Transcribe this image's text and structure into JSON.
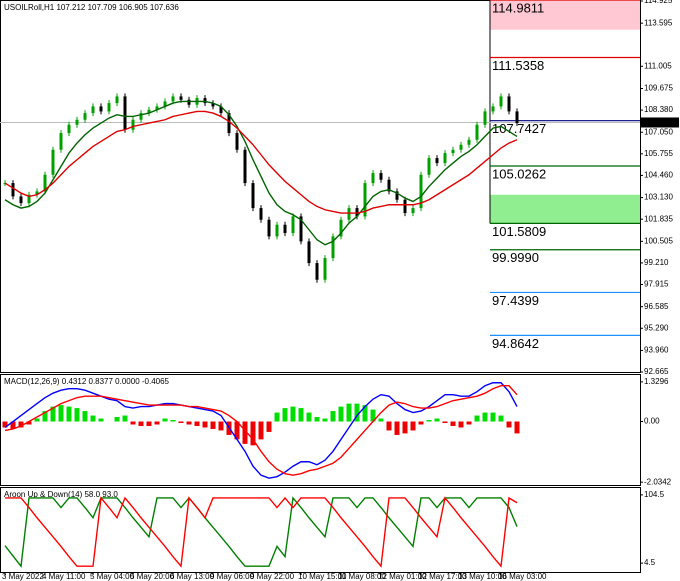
{
  "chart_data": [
    {
      "type": "candlestick",
      "title": "USOILRoll,H1 107.212 107.709 106.905 107.636",
      "categories": [
        "3 May 2022",
        null,
        null,
        null,
        null,
        "4 May 11:00",
        null,
        null,
        null,
        null,
        null,
        "5 May 04:00",
        null,
        null,
        null,
        null,
        "5 May 20:00",
        null,
        null,
        null,
        null,
        "6 May 13:00",
        null,
        null,
        null,
        null,
        "9 May 06:00",
        null,
        null,
        null,
        null,
        "9 May 22:00",
        null,
        null,
        null,
        null,
        null,
        "10 May 15:00",
        null,
        null,
        null,
        null,
        "11 May 08:00",
        null,
        null,
        null,
        null,
        "12 May 01:00",
        null,
        null,
        null,
        null,
        "12 May 17:00",
        null,
        null,
        null,
        null,
        "13 May 10:00",
        null,
        null,
        null,
        null,
        "16 May 03:00",
        null,
        null
      ],
      "values": [
        104.0,
        103.2,
        102.8,
        103.3,
        103.5,
        104.5,
        106.0,
        107.0,
        107.5,
        107.8,
        108.2,
        108.6,
        108.3,
        108.8,
        109.2,
        107.2,
        107.8,
        108.2,
        108.4,
        108.6,
        108.9,
        109.2,
        109.0,
        108.7,
        109.1,
        108.8,
        108.6,
        108.2,
        107.0,
        106.0,
        104.0,
        102.5,
        101.8,
        100.8,
        101.5,
        101.0,
        102.0,
        100.5,
        99.2,
        98.2,
        99.5,
        100.8,
        101.8,
        102.5,
        102.0,
        104.0,
        104.6,
        104.2,
        103.5,
        103.0,
        102.2,
        102.5,
        104.5,
        105.5,
        105.2,
        105.8,
        106.0,
        106.3,
        106.6,
        107.5,
        108.3,
        108.6,
        109.2,
        108.3,
        107.6
      ],
      "up_color": "#00a000",
      "down_color": "#000000",
      "series": [
        {
          "color": "#006400",
          "values": [
            103.0,
            102.7,
            102.5,
            102.6,
            102.9,
            103.4,
            104.2,
            105.0,
            105.8,
            106.4,
            106.9,
            107.3,
            107.6,
            107.9,
            108.1,
            108.0,
            108.0,
            108.1,
            108.2,
            108.4,
            108.6,
            108.8,
            108.9,
            108.9,
            108.9,
            108.9,
            108.8,
            108.6,
            108.1,
            107.4,
            106.5,
            105.4,
            104.4,
            103.4,
            102.7,
            102.3,
            102.1,
            101.8,
            101.2,
            100.6,
            100.3,
            100.5,
            101.0,
            101.6,
            102.0,
            102.6,
            103.2,
            103.5,
            103.6,
            103.4,
            103.1,
            102.9,
            103.2,
            103.8,
            104.3,
            104.8,
            105.2,
            105.6,
            105.9,
            106.3,
            106.8,
            107.3,
            107.4,
            107.1,
            106.8
          ]
        },
        {
          "color": "#e00000",
          "values": [
            104.0,
            103.7,
            103.4,
            103.2,
            103.3,
            103.6,
            104.0,
            104.5,
            105.0,
            105.4,
            105.8,
            106.2,
            106.5,
            106.8,
            107.1,
            107.2,
            107.4,
            107.5,
            107.6,
            107.7,
            107.8,
            108.0,
            108.1,
            108.2,
            108.3,
            108.3,
            108.2,
            108.0,
            107.7,
            107.3,
            106.8,
            106.3,
            105.7,
            105.1,
            104.6,
            104.1,
            103.7,
            103.3,
            102.9,
            102.6,
            102.4,
            102.3,
            102.2,
            102.2,
            102.2,
            102.3,
            102.5,
            102.6,
            102.7,
            102.7,
            102.7,
            102.7,
            102.8,
            103.0,
            103.3,
            103.6,
            103.9,
            104.2,
            104.5,
            104.9,
            105.3,
            105.7,
            106.1,
            106.4,
            106.6
          ]
        }
      ],
      "levels": [
        {
          "value": 114.9811,
          "color": "#e00000"
        },
        {
          "value": 111.5358,
          "color": "#e00000"
        },
        {
          "value": 107.7427,
          "color": "#000080"
        },
        {
          "value": 105.0262,
          "color": "#006400"
        },
        {
          "value": 101.5809,
          "color": "#006400"
        },
        {
          "value": 99.999,
          "label": "99.9990",
          "color": "#006400"
        },
        {
          "value": 97.4399,
          "color": "#1e90ff"
        },
        {
          "value": 94.8642,
          "color": "#1e90ff"
        }
      ],
      "zones": [
        {
          "from": 114.9811,
          "to": 113.2,
          "color": "#ffc8d2"
        },
        {
          "from": 103.3,
          "to": 101.5809,
          "color": "#90ee90"
        }
      ],
      "current": 107.636,
      "ylim": [
        92.665,
        114.925
      ],
      "yticks": [
        114.925,
        113.595,
        111.005,
        {
          "value": 109.675,
          "label": "109.675"
        },
        {
          "value": 108.38,
          "label": "108.380"
        },
        {
          "value": 107.05,
          "label": "107.050"
        },
        105.755,
        {
          "value": 104.46,
          "label": "104.460"
        },
        {
          "value": 103.13,
          "label": "103.130"
        },
        101.835,
        100.505,
        {
          "value": 99.21,
          "label": "99.210"
        },
        97.915,
        96.585,
        {
          "value": 95.29,
          "label": "95.290"
        },
        {
          "value": 93.96,
          "label": "93.960"
        },
        92.665
      ]
    },
    {
      "type": "macd",
      "title": "MACD(12,26,9) 0.4312 0.8377 0.0000 -0.4065",
      "histogram": {
        "positive_color": "#00dd00",
        "negative_color": "#ee0000",
        "values": [
          -0.2,
          -0.25,
          -0.2,
          -0.1,
          0.1,
          0.35,
          0.5,
          0.55,
          0.5,
          0.45,
          0.35,
          0.2,
          0.1,
          0.0,
          0.15,
          0.2,
          -0.1,
          -0.15,
          -0.15,
          -0.1,
          0.1,
          0.05,
          -0.05,
          -0.1,
          -0.15,
          -0.2,
          -0.25,
          -0.3,
          -0.45,
          -0.6,
          -0.75,
          -0.8,
          -0.6,
          -0.35,
          0.3,
          0.45,
          0.5,
          0.45,
          0.3,
          0.15,
          0.1,
          0.35,
          0.5,
          0.6,
          0.6,
          0.55,
          0.4,
          0.1,
          -0.3,
          -0.45,
          -0.4,
          -0.3,
          -0.1,
          0.05,
          0.1,
          -0.05,
          -0.15,
          -0.2,
          -0.1,
          0.2,
          0.3,
          0.3,
          0.2,
          -0.2,
          -0.4
        ]
      },
      "series": [
        {
          "color": "#0000ff",
          "values": [
            -0.2,
            0.0,
            0.2,
            0.4,
            0.6,
            0.8,
            0.95,
            1.05,
            1.1,
            1.1,
            1.05,
            0.95,
            0.85,
            0.75,
            0.7,
            0.5,
            0.45,
            0.5,
            0.5,
            0.55,
            0.6,
            0.6,
            0.55,
            0.5,
            0.45,
            0.4,
            0.35,
            0.2,
            -0.2,
            -0.6,
            -1.0,
            -1.5,
            -1.8,
            -1.9,
            -1.85,
            -1.7,
            -1.5,
            -1.35,
            -1.35,
            -1.45,
            -1.3,
            -1.0,
            -0.6,
            -0.2,
            0.2,
            0.5,
            0.75,
            0.9,
            0.85,
            0.6,
            0.4,
            0.3,
            0.35,
            0.5,
            0.7,
            0.9,
            0.9,
            0.85,
            0.85,
            1.0,
            1.2,
            1.3,
            1.3,
            1.0,
            0.5
          ]
        },
        {
          "color": "#ff0000",
          "values": [
            -0.3,
            -0.25,
            -0.15,
            0.0,
            0.15,
            0.3,
            0.45,
            0.6,
            0.7,
            0.8,
            0.85,
            0.85,
            0.85,
            0.8,
            0.75,
            0.7,
            0.65,
            0.6,
            0.55,
            0.55,
            0.55,
            0.55,
            0.55,
            0.5,
            0.5,
            0.45,
            0.4,
            0.35,
            0.2,
            0.0,
            -0.3,
            -0.6,
            -1.0,
            -1.35,
            -1.6,
            -1.75,
            -1.8,
            -1.75,
            -1.65,
            -1.6,
            -1.5,
            -1.4,
            -1.2,
            -0.9,
            -0.6,
            -0.3,
            0.0,
            0.3,
            0.55,
            0.65,
            0.6,
            0.5,
            0.45,
            0.45,
            0.5,
            0.6,
            0.7,
            0.75,
            0.8,
            0.85,
            0.95,
            1.1,
            1.2,
            1.2,
            0.9
          ]
        }
      ],
      "ylim": [
        -2.13,
        1.56
      ],
      "yticks": [
        1.3296,
        {
          "value": 0,
          "label": "0.00"
        },
        -2.0342
      ]
    },
    {
      "type": "aroon",
      "title": "Aroon Up & Down(14) 58.0 93.0",
      "series": [
        {
          "color": "#008000",
          "values": [
            30,
            15,
            0,
            100,
            100,
            100,
            100,
            86,
            100,
            100,
            86,
            71,
            100,
            100,
            100,
            86,
            71,
            57,
            43,
            100,
            100,
            100,
            86,
            100,
            86,
            71,
            57,
            43,
            29,
            14,
            0,
            0,
            0,
            0,
            29,
            14,
            100,
            86,
            71,
            57,
            43,
            100,
            100,
            100,
            86,
            100,
            100,
            86,
            71,
            57,
            43,
            29,
            100,
            100,
            86,
            100,
            100,
            100,
            86,
            100,
            100,
            100,
            100,
            86,
            58
          ]
        },
        {
          "color": "#ff0000",
          "values": [
            100,
            100,
            100,
            86,
            71,
            57,
            43,
            29,
            14,
            0,
            0,
            0,
            100,
            86,
            71,
            100,
            86,
            71,
            57,
            43,
            29,
            14,
            0,
            100,
            86,
            71,
            100,
            100,
            100,
            100,
            100,
            100,
            100,
            100,
            86,
            100,
            86,
            100,
            100,
            100,
            100,
            86,
            71,
            57,
            43,
            29,
            14,
            0,
            100,
            100,
            100,
            86,
            71,
            57,
            43,
            100,
            86,
            71,
            57,
            43,
            29,
            14,
            0,
            100,
            93
          ]
        }
      ],
      "ylim": [
        -8.5,
        114.6
      ],
      "yticks": [
        104.5,
        4.5
      ]
    }
  ]
}
